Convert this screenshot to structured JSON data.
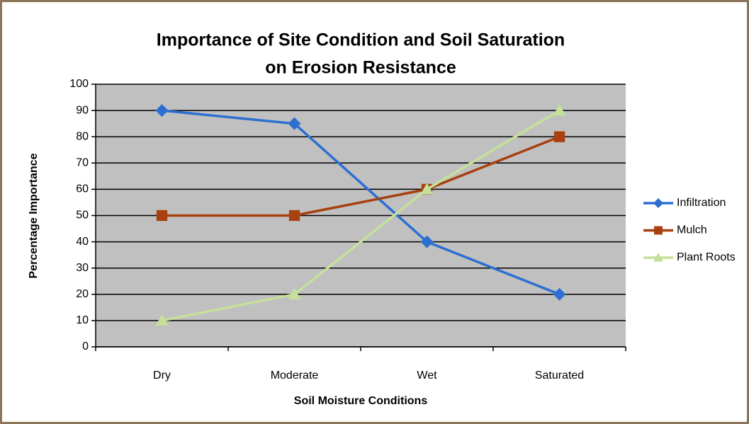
{
  "chart_data": {
    "type": "line",
    "title": [
      "Importance of Site Condition and Soil Saturation",
      "on Erosion Resistance"
    ],
    "x_label": "Soil Moisture Conditions",
    "y_label": "Percentage Importance",
    "categories": [
      "Dry",
      "Moderate",
      "Wet",
      "Saturated"
    ],
    "series": [
      {
        "name": "Infiltration",
        "color": "#2c6fd1",
        "marker": "diamond",
        "values": [
          90,
          85,
          40,
          20
        ]
      },
      {
        "name": "Mulch",
        "color": "#a8400f",
        "marker": "square",
        "values": [
          50,
          50,
          60,
          80
        ]
      },
      {
        "name": "Plant Roots",
        "color": "#c5e09b",
        "marker": "triangle",
        "values": [
          10,
          20,
          60,
          90
        ]
      }
    ],
    "ylim": [
      0,
      100
    ],
    "yticks": [
      0,
      10,
      20,
      30,
      40,
      50,
      60,
      70,
      80,
      90,
      100
    ],
    "grid": true,
    "legend": "right"
  }
}
